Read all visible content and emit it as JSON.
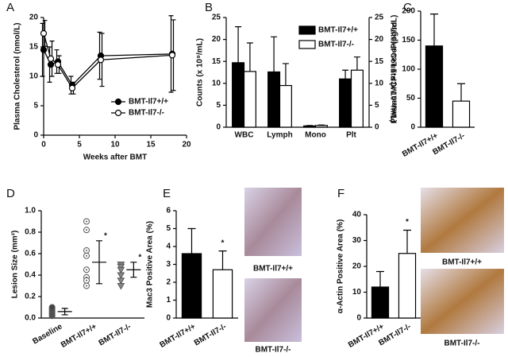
{
  "chart_data": [
    {
      "type": "line",
      "label": "A",
      "xlabel": "Weeks after BMT",
      "ylabel": "Plasma Cholesterol (nmol/L)",
      "x": [
        0,
        1,
        2,
        4,
        8,
        18
      ],
      "xlim": [
        0,
        20
      ],
      "xticks": [
        0,
        5,
        10,
        15,
        20
      ],
      "ylim": [
        0,
        20
      ],
      "yticks": [
        0,
        5,
        10,
        15,
        20
      ],
      "legend": "lower right",
      "series": [
        {
          "name": "BMT-Il7+/+",
          "color": "#000000",
          "values": [
            14.5,
            12,
            12.5,
            8.5,
            13.5,
            13.8
          ],
          "errors": [
            4.5,
            3,
            2,
            1.5,
            4,
            6.5
          ]
        },
        {
          "name": "BMT-Il7-/-",
          "color": "#ffffff",
          "values": [
            17.3,
            13,
            12,
            8,
            12.8,
            13.6
          ],
          "errors": [
            2.2,
            3,
            1.5,
            1,
            4.5,
            6
          ]
        }
      ]
    },
    {
      "type": "grouped_bar",
      "label": "B",
      "ylabel": "Counts (x 10⁹/mL)",
      "y2label": "Platelet Counts (x 10¹¹/mL)",
      "categories": [
        "WBC",
        "Lymph",
        "Mono",
        "Plt"
      ],
      "ylim": [
        0,
        25
      ],
      "yticks": [
        0,
        5,
        10,
        15,
        20,
        25
      ],
      "y2lim": [
        0,
        25
      ],
      "y2ticks": [
        0,
        5,
        10,
        15,
        20,
        25
      ],
      "legend": "upper right",
      "series": [
        {
          "name": "BMT-Il7+/+",
          "color": "#000000",
          "values": [
            14.7,
            12.6,
            0.3,
            11
          ],
          "errors": [
            8.2,
            8,
            0.1,
            2
          ]
        },
        {
          "name": "BMT-Il7-/-",
          "color": "#ffffff",
          "values": [
            12.7,
            9.5,
            0.4,
            13
          ],
          "errors": [
            6.5,
            5,
            0.1,
            3
          ]
        }
      ]
    },
    {
      "type": "bar",
      "label": "C",
      "ylabel": "Plasma MCP-1 Level (pg/mL)",
      "categories": [
        "BMT-Il7+/+",
        "BMT-Il7-/-"
      ],
      "colors": [
        "#000000",
        "#ffffff"
      ],
      "values": [
        140,
        45
      ],
      "errors": [
        55,
        30
      ],
      "ylim": [
        0,
        200
      ],
      "yticks": [
        0,
        50,
        100,
        150,
        200
      ]
    },
    {
      "type": "dot",
      "label": "D",
      "ylabel": "Lesion Size (mm²)",
      "categories": [
        "Baseline",
        "BMT-Il7+/+",
        "BMT-Il7-/-"
      ],
      "colors": [
        "#444444",
        "#ffffff",
        "#888888"
      ],
      "points": [
        [
          0.02,
          0.03,
          0.04,
          0.05,
          0.06,
          0.07,
          0.08,
          0.09,
          0.1
        ],
        [
          0.9,
          0.82,
          0.63,
          0.58,
          0.45,
          0.38,
          0.35,
          0.3
        ],
        [
          0.5,
          0.48,
          0.45,
          0.4,
          0.35,
          0.3
        ]
      ],
      "means": [
        0.06,
        0.52,
        0.45
      ],
      "errors": [
        0.03,
        0.2,
        0.07
      ],
      "ylim": [
        0,
        1
      ],
      "yticks": [
        {
          "value": 0,
          "label": "0.0"
        },
        0.2,
        0.4,
        0.6,
        0.8,
        {
          "value": 1,
          "label": "1.0"
        }
      ],
      "annotations": [
        "*",
        "*"
      ]
    },
    {
      "type": "bar",
      "label": "E",
      "ylabel": "Mac3 Positive Area (%)",
      "categories": [
        "BMT-Il7+/+",
        "BMT-Il7-/-"
      ],
      "colors": [
        "#000000",
        "#ffffff"
      ],
      "values": [
        3.6,
        2.7
      ],
      "errors": [
        1.4,
        1.05
      ],
      "ylim": [
        0,
        6
      ],
      "yticks": [
        0,
        1,
        2,
        3,
        4,
        5,
        6
      ],
      "annotations": [
        "*"
      ],
      "image_captions": [
        "BMT-Il7+/+",
        "BMT-Il7-/-"
      ]
    },
    {
      "type": "bar",
      "label": "F",
      "ylabel": "α-Actin Positive Area (%)",
      "categories": [
        "BMT-Il7+/+",
        "BMT-Il7-/-"
      ],
      "colors": [
        "#000000",
        "#ffffff"
      ],
      "values": [
        12,
        25
      ],
      "errors": [
        6,
        9
      ],
      "ylim": [
        0,
        40
      ],
      "yticks": [
        0,
        10,
        20,
        30,
        40
      ],
      "annotations": [
        "*"
      ],
      "image_captions": [
        "BMT-Il7+/+",
        "BMT-Il7-/-"
      ]
    }
  ]
}
